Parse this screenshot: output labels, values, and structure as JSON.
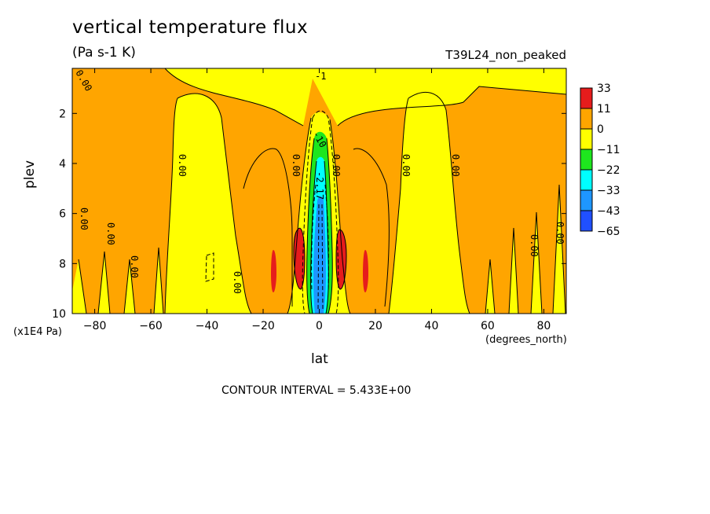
{
  "header": {
    "title": "vertical temperature flux",
    "units": "(Pa s-1 K)",
    "run_name": "T39L24_non_peaked"
  },
  "footer": {
    "contour_interval": "CONTOUR INTERVAL = 5.433E+00"
  },
  "chart_data": {
    "type": "heatmap",
    "title": "vertical temperature flux",
    "subtitle": "(Pa s-1 K)",
    "annotation": "T39L24_non_peaked",
    "xlabel": "lat",
    "xunit": "(degrees_north)",
    "ylabel": "plev",
    "yunit": "(x1E4 Pa)",
    "xlim": [
      -88,
      88
    ],
    "ylim": [
      10,
      0.2
    ],
    "x_ticks": [
      -80,
      -60,
      -40,
      -20,
      0,
      20,
      40,
      60,
      80
    ],
    "y_ticks": [
      2,
      4,
      6,
      8,
      10
    ],
    "colorbar": {
      "levels": [
        "33",
        "11",
        "0",
        "-11",
        "-22",
        "-33",
        "-43",
        "-65"
      ],
      "colors": [
        "#e61c1c",
        "#ffa500",
        "#ffff00",
        "#1ee61e",
        "#00ffff",
        "#1e96ff",
        "#2050ff"
      ]
    },
    "contour_labels": [
      {
        "text": "0.00",
        "lat": -85,
        "plev": 0.9
      },
      {
        "text": "0.00",
        "lat": -50,
        "plev": 4.0
      },
      {
        "text": "0.00",
        "lat": -84,
        "plev": 6.3
      },
      {
        "text": "0.00",
        "lat": -75,
        "plev": 7.0
      },
      {
        "text": "0.00",
        "lat": -66,
        "plev": 8.0
      },
      {
        "text": "0.00",
        "lat": -29,
        "plev": 8.6
      },
      {
        "text": "0.00",
        "lat": -7,
        "plev": 4.0
      },
      {
        "text": "0.00",
        "lat": 7,
        "plev": 4.0
      },
      {
        "text": "0.00",
        "lat": 31,
        "plev": 4.0
      },
      {
        "text": "0.00",
        "lat": 50,
        "plev": 4.0
      },
      {
        "text": "0.00",
        "lat": 77,
        "plev": 7.3
      },
      {
        "text": "0.00",
        "lat": 87,
        "plev": 6.9
      },
      {
        "text": "-2.17",
        "lat": 0,
        "plev": 4.9
      },
      {
        "text": "-10",
        "lat": -1,
        "plev": 3.2
      },
      {
        "text": "-1",
        "lat": 0,
        "plev": 0.3
      }
    ],
    "contour_interval": 5.433
  }
}
